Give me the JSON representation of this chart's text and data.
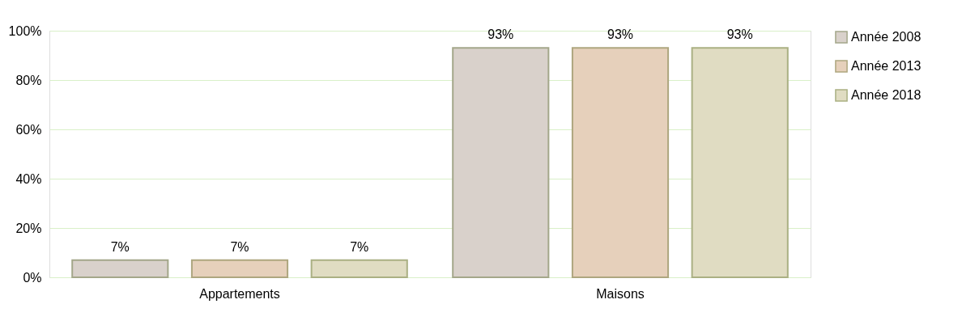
{
  "chart_data": {
    "type": "bar",
    "categories": [
      "Appartements",
      "Maisons"
    ],
    "series": [
      {
        "name": "Année 2008",
        "color": "#d9d1cb",
        "values": [
          7,
          93
        ],
        "value_labels": [
          "7%",
          "93%"
        ]
      },
      {
        "name": "Année 2013",
        "color": "#e6d0bb",
        "values": [
          7,
          93
        ],
        "value_labels": [
          "7%",
          "93%"
        ]
      },
      {
        "name": "Année 2018",
        "color": "#e0dcc2",
        "values": [
          7,
          93
        ],
        "value_labels": [
          "7%",
          "93%"
        ]
      }
    ],
    "ylim": [
      0,
      100
    ],
    "yticks": [
      {
        "value": 0,
        "label": "0%"
      },
      {
        "value": 20,
        "label": "20%"
      },
      {
        "value": 40,
        "label": "40%"
      },
      {
        "value": 60,
        "label": "60%"
      },
      {
        "value": 80,
        "label": "80%"
      },
      {
        "value": 100,
        "label": "100%"
      }
    ],
    "grid": "y",
    "legend": "right"
  }
}
